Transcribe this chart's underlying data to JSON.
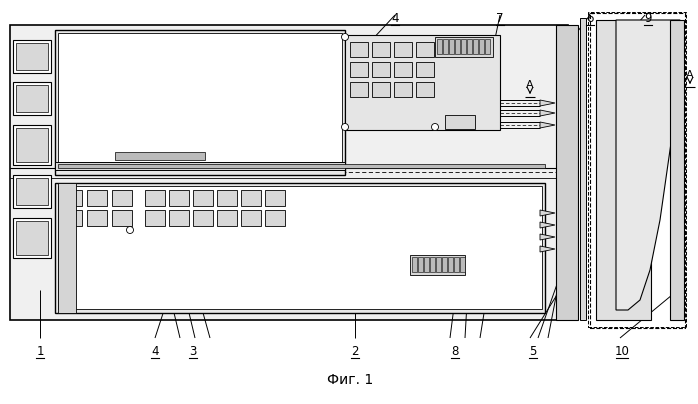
{
  "title": "Фиг. 1",
  "bg_color": "#ffffff",
  "line_color": "#000000",
  "fig_width": 6.98,
  "fig_height": 4.04,
  "dpi": 100,
  "gray_light": "#d8d8d8",
  "gray_mid": "#bbbbbb",
  "gray_dark": "#999999"
}
